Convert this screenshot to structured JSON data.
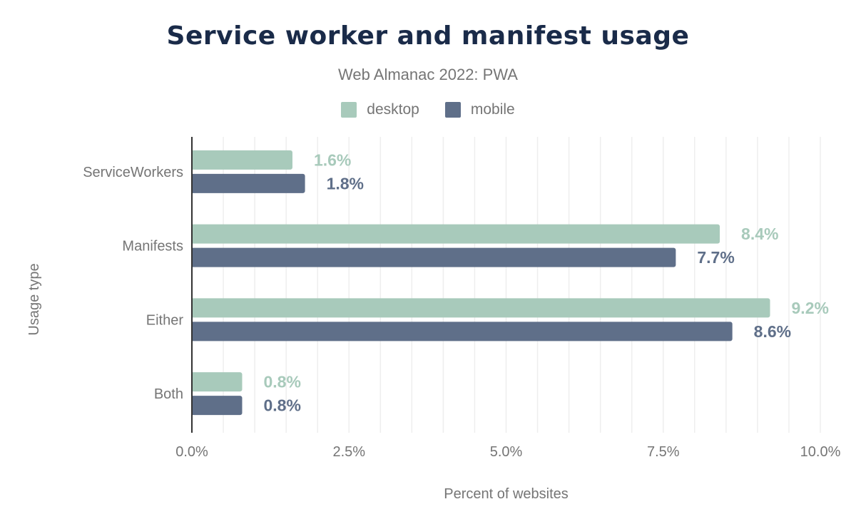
{
  "chart_data": {
    "type": "bar",
    "orientation": "horizontal",
    "title": "Service worker and manifest usage",
    "subtitle": "Web Almanac 2022: PWA",
    "xlabel": "Percent of websites",
    "ylabel": "Usage type",
    "categories": [
      "ServiceWorkers",
      "Manifests",
      "Either",
      "Both"
    ],
    "series": [
      {
        "name": "desktop",
        "color": "#a8cabb",
        "values": [
          1.6,
          8.4,
          9.2,
          0.8
        ],
        "labels": [
          "1.6%",
          "8.4%",
          "9.2%",
          "0.8%"
        ]
      },
      {
        "name": "mobile",
        "color": "#5f6f89",
        "values": [
          1.8,
          7.7,
          8.6,
          0.8
        ],
        "labels": [
          "1.8%",
          "7.7%",
          "8.6%",
          "0.8%"
        ]
      }
    ],
    "xlim": [
      0,
      10
    ],
    "xticks": [
      0,
      2.5,
      5,
      7.5,
      10
    ],
    "xtick_labels": [
      "0.0%",
      "2.5%",
      "5.0%",
      "7.5%",
      "10.0%"
    ],
    "grid": true,
    "legend_position": "top"
  }
}
